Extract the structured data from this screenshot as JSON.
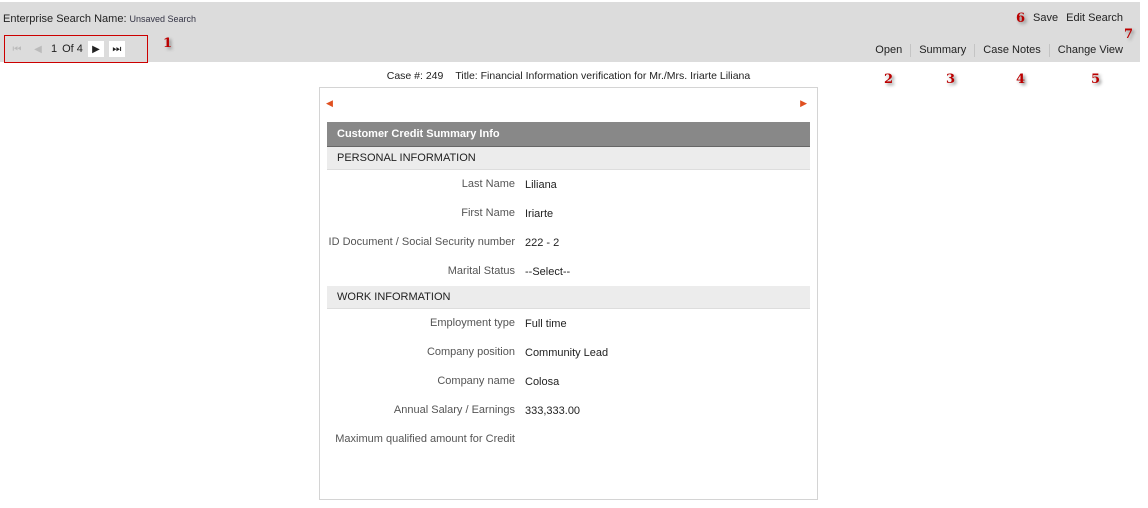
{
  "header": {
    "search_name_label": "Enterprise Search Name:",
    "search_name_value": "Unsaved Search",
    "save": "Save",
    "edit_search": "Edit Search"
  },
  "pager": {
    "current": "1",
    "of": "Of 4"
  },
  "actions": [
    "Open",
    "Summary",
    "Case Notes",
    "Change View"
  ],
  "annotations": [
    "1",
    "2",
    "3",
    "4",
    "5",
    "6",
    "7"
  ],
  "case": {
    "number": "Case #: 249",
    "title": "Title: Financial Information verification for Mr./Mrs. Iriarte Liliana"
  },
  "form": {
    "title": "Customer Credit Summary Info",
    "sections": [
      {
        "title": "PERSONAL INFORMATION",
        "fields": [
          {
            "label": "Last Name",
            "value": "Liliana"
          },
          {
            "label": "First Name",
            "value": "Iriarte"
          },
          {
            "label": "ID Document / Social Security number",
            "value": "222 - 2"
          },
          {
            "label": "Marital Status",
            "value": "--Select--"
          }
        ]
      },
      {
        "title": "WORK INFORMATION",
        "fields": [
          {
            "label": "Employment type",
            "value": "Full time"
          },
          {
            "label": "Company position",
            "value": "Community Lead"
          },
          {
            "label": "Company name",
            "value": "Colosa"
          },
          {
            "label": "Annual Salary / Earnings",
            "value": "333,333.00"
          },
          {
            "label": "Maximum qualified amount for Credit",
            "value": ""
          }
        ]
      }
    ]
  }
}
